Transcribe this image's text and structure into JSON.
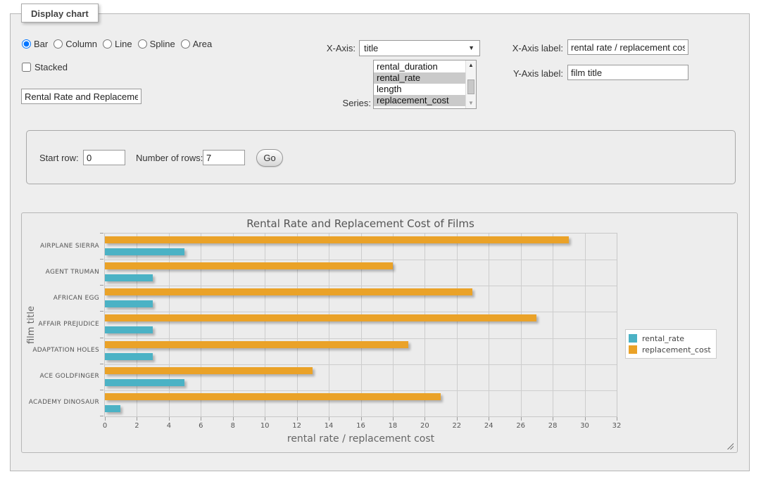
{
  "panel": {
    "legend_title": "Display chart",
    "chart_types": [
      {
        "label": "Bar",
        "selected": true
      },
      {
        "label": "Column",
        "selected": false
      },
      {
        "label": "Line",
        "selected": false
      },
      {
        "label": "Spline",
        "selected": false
      },
      {
        "label": "Area",
        "selected": false
      }
    ],
    "stacked_label": "Stacked",
    "stacked_checked": false,
    "title_value": "Rental Rate and Replacemer",
    "x_axis_label_text": "X-Axis:",
    "x_axis_select_value": "title",
    "series_label_text": "Series:",
    "series_options": [
      {
        "label": "rental_duration",
        "selected": false
      },
      {
        "label": "rental_rate",
        "selected": true
      },
      {
        "label": "length",
        "selected": false
      },
      {
        "label": "replacement_cost",
        "selected": true
      }
    ],
    "x_axis_field_label": "X-Axis label:",
    "x_axis_field_value": "rental rate / replacement cost",
    "y_axis_field_label": "Y-Axis label:",
    "y_axis_field_value": "film title"
  },
  "icons": {
    "select_arrow": "▼",
    "scroll_up": "▲",
    "scroll_down": "▼"
  },
  "rows_panel": {
    "start_row_label": "Start row:",
    "start_row_value": "0",
    "num_rows_label": "Number of rows:",
    "num_rows_value": "7",
    "go_label": "Go"
  },
  "chart_data": {
    "type": "bar",
    "orientation": "horizontal",
    "title": "Rental Rate and Replacement Cost of Films",
    "categories": [
      "AIRPLANE SIERRA",
      "AGENT TRUMAN",
      "AFRICAN EGG",
      "AFFAIR PREJUDICE",
      "ADAPTATION HOLES",
      "ACE GOLDFINGER",
      "ACADEMY DINOSAUR"
    ],
    "series": [
      {
        "name": "rental_rate",
        "color": "#4bb2c5",
        "values": [
          4.99,
          2.99,
          2.99,
          2.99,
          2.99,
          4.99,
          0.99
        ]
      },
      {
        "name": "replacement_cost",
        "color": "#eaa228",
        "values": [
          28.99,
          17.99,
          22.99,
          26.99,
          18.99,
          12.99,
          20.99
        ]
      }
    ],
    "xlabel": "rental rate / replacement cost",
    "ylabel": "film title",
    "xlim": [
      0,
      32
    ],
    "xtick_step": 2,
    "grid": true,
    "legend_position": "right",
    "grid_bg": "#ececec",
    "gridline_color": "#cdcdcd"
  }
}
